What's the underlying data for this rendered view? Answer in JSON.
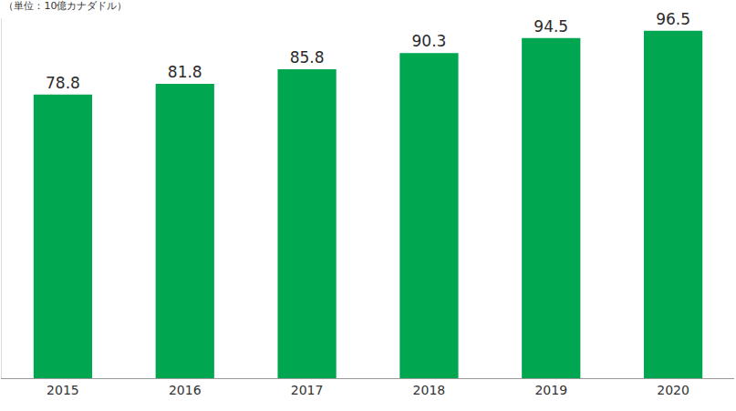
{
  "chart_data": {
    "type": "bar",
    "title": "（単位：10億カナダドル）",
    "categories": [
      "2015",
      "2016",
      "2017",
      "2018",
      "2019",
      "2020"
    ],
    "values": [
      78.8,
      81.8,
      85.8,
      90.3,
      94.5,
      96.5
    ],
    "color": "#00a650",
    "ylim": [
      0,
      100
    ],
    "grid": false,
    "data_labels": true,
    "tick_labels": "x"
  }
}
